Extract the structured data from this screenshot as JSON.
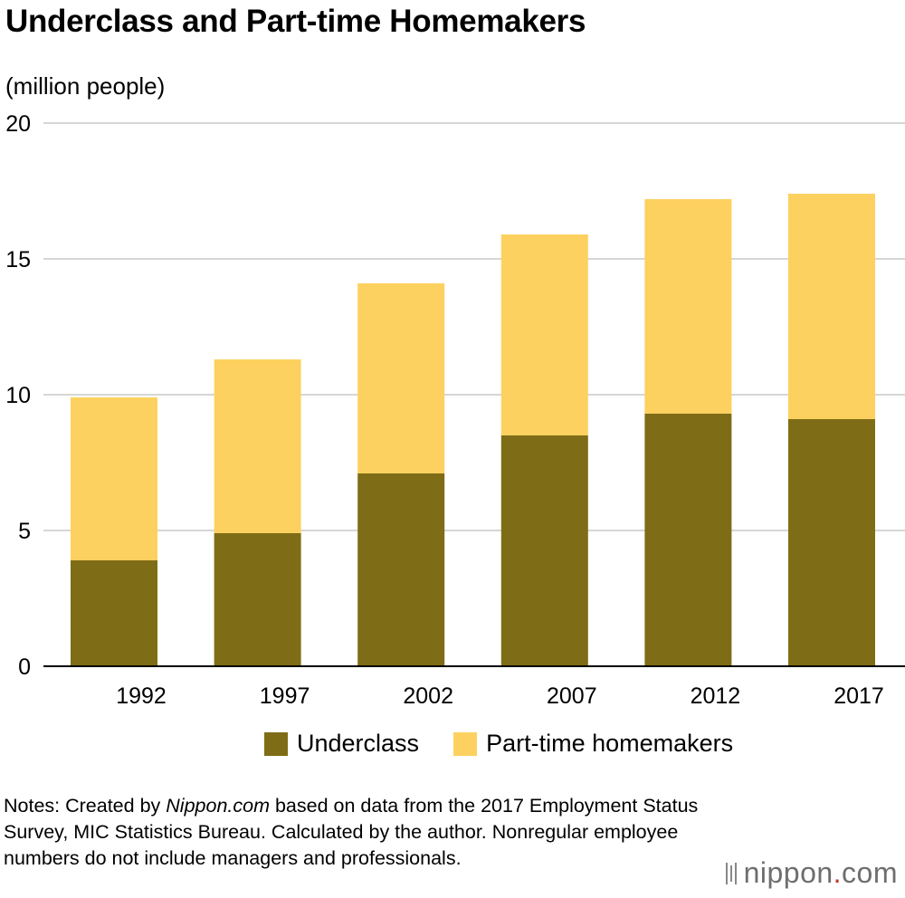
{
  "title": "Underclass and Part-time Homemakers",
  "unit_label": "(million people)",
  "colors": {
    "underclass": "#7f6c16",
    "parttime": "#fdd15f",
    "grid": "#c8c8c8",
    "axis": "#000000"
  },
  "chart_data": {
    "type": "bar",
    "stacked": true,
    "categories": [
      "1992",
      "1997",
      "2002",
      "2007",
      "2012",
      "2017"
    ],
    "series": [
      {
        "name": "Underclass",
        "values": [
          3.9,
          4.9,
          7.1,
          8.5,
          9.3,
          9.1
        ]
      },
      {
        "name": "Part-time homemakers",
        "values": [
          6.0,
          6.4,
          7.0,
          7.4,
          7.9,
          8.3
        ]
      }
    ],
    "ylim": [
      0,
      20
    ],
    "yticks": [
      "0",
      "5",
      "10",
      "15",
      "20"
    ],
    "grid": true,
    "legend_position": "bottom"
  },
  "legend": {
    "underclass": "Underclass",
    "parttime": "Part-time homemakers"
  },
  "notes": {
    "prefix": "Notes: Created by ",
    "source_name": "Nippon.com",
    "suffix": " based on data from the 2017 Employment Status Survey, MIC Statistics Bureau. Calculated by the author. Nonregular employee numbers do not include managers and professionals."
  },
  "logo": {
    "name": "nippon",
    "dot": ".",
    "tld": "com"
  }
}
